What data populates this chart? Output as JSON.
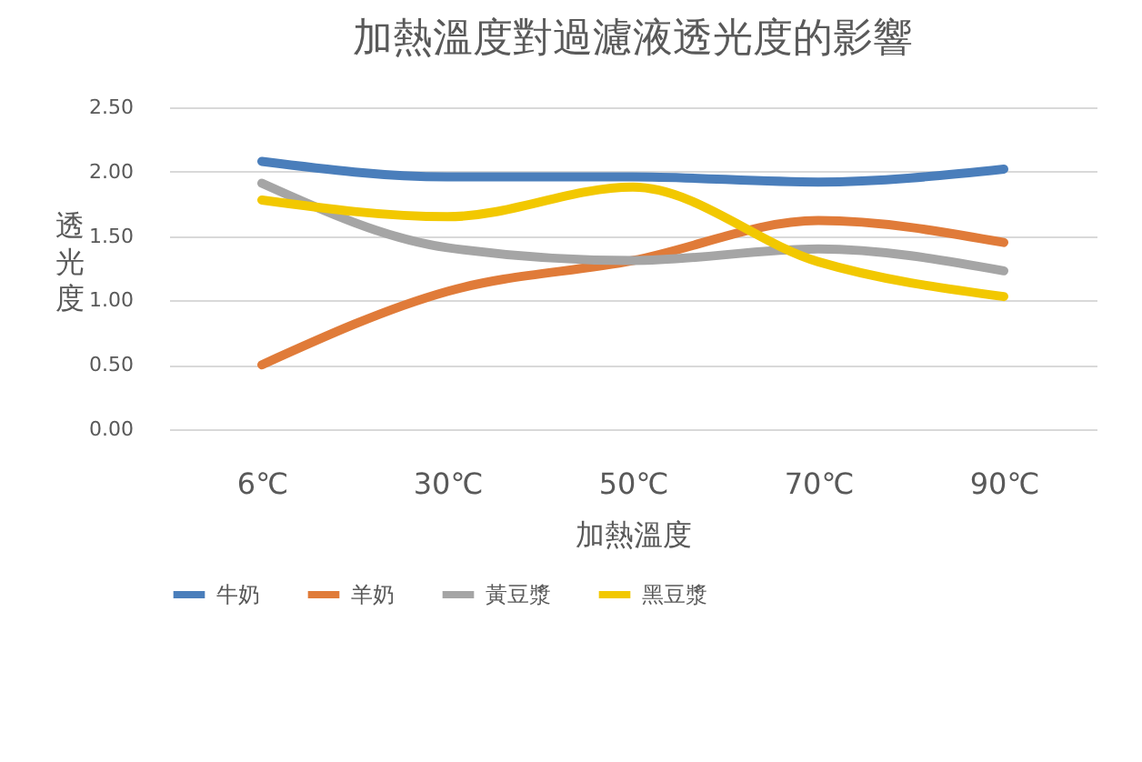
{
  "chart_data": {
    "type": "line",
    "title": "加熱溫度對過濾液透光度的影響",
    "xlabel": "加熱溫度",
    "ylabel": "透光度",
    "categories": [
      "6℃",
      "30℃",
      "50℃",
      "70℃",
      "90℃"
    ],
    "series": [
      {
        "name": "牛奶",
        "color": "#4a7ebb",
        "values": [
          2.08,
          1.96,
          1.96,
          1.92,
          2.02
        ]
      },
      {
        "name": "羊奶",
        "color": "#e07b39",
        "values": [
          0.5,
          1.07,
          1.31,
          1.62,
          1.45
        ]
      },
      {
        "name": "黃豆漿",
        "color": "#a5a5a5",
        "values": [
          1.91,
          1.41,
          1.31,
          1.4,
          1.23
        ]
      },
      {
        "name": "黑豆漿",
        "color": "#f2c800",
        "values": [
          1.78,
          1.65,
          1.88,
          1.3,
          1.03
        ]
      }
    ],
    "ylim": [
      0,
      2.5
    ],
    "yticks": [
      {
        "value": 0,
        "label": "0.00"
      },
      {
        "value": 0.5,
        "label": "0.50"
      },
      {
        "value": 1,
        "label": "1.00"
      },
      {
        "value": 1.5,
        "label": "1.50"
      },
      {
        "value": 2,
        "label": "2.00"
      },
      {
        "value": 2.5,
        "label": "2.50"
      }
    ],
    "grid": "y",
    "legend": "bottom",
    "line_style": "solid"
  }
}
